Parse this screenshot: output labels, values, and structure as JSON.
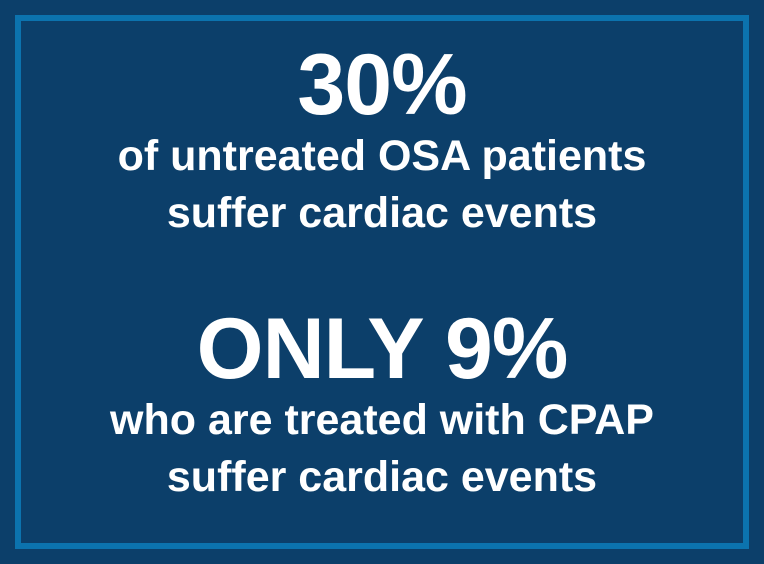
{
  "theme": {
    "background": "#0C3F6A",
    "border_color": "#0C73AE",
    "text_color": "#FFFFFF"
  },
  "infographic": {
    "stat_untreated": {
      "value": "30%",
      "desc_line1": "of untreated OSA patients",
      "desc_line2": "suffer cardiac events"
    },
    "stat_treated": {
      "value": "ONLY 9%",
      "desc_line1": "who are treated with CPAP",
      "desc_line2": "suffer cardiac events"
    }
  }
}
